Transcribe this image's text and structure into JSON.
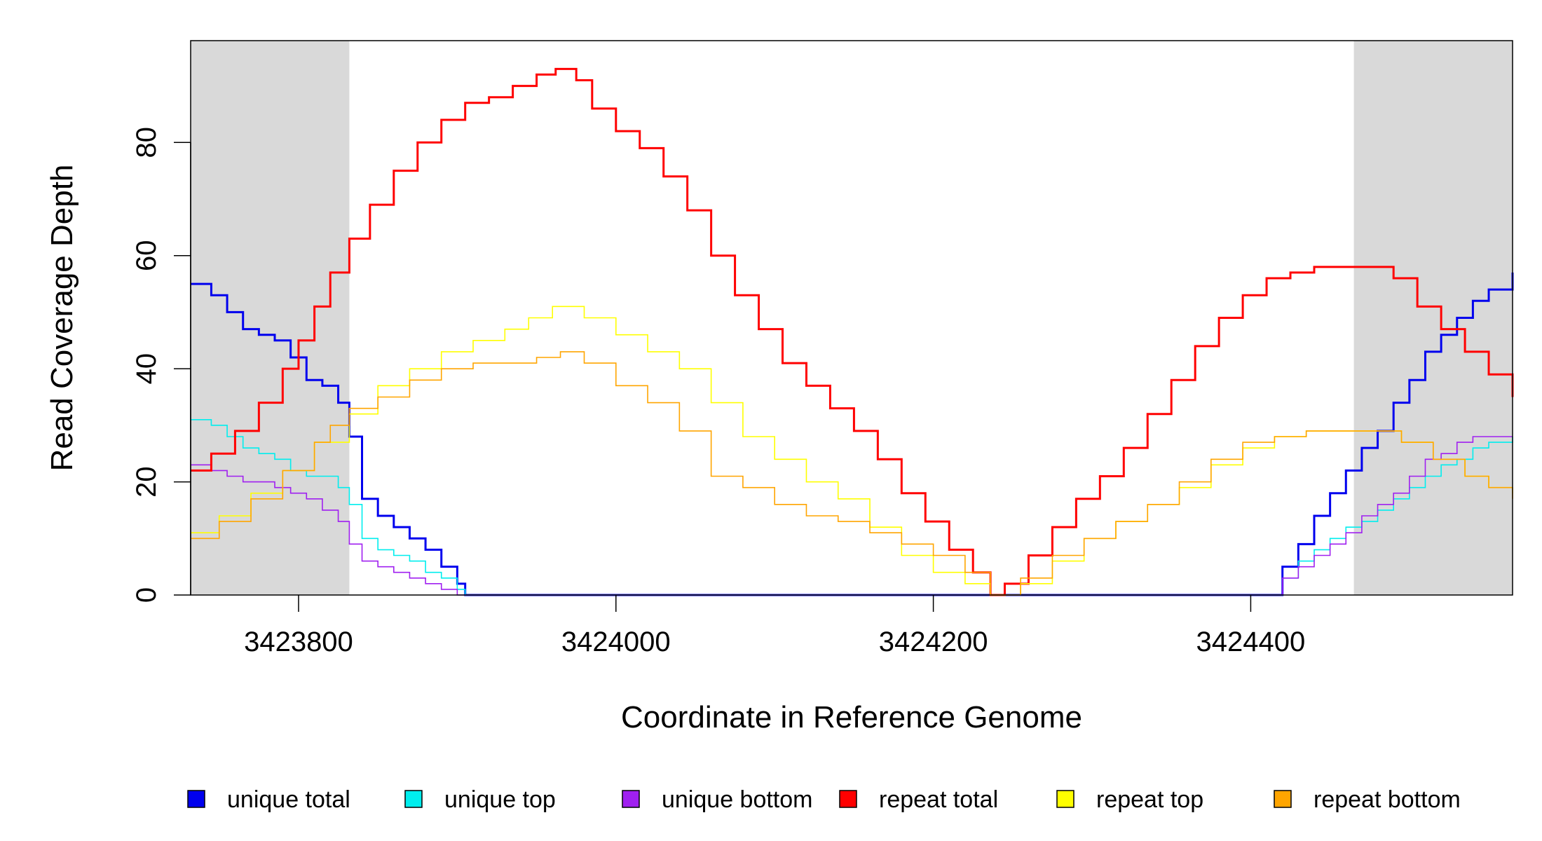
{
  "chart_data": {
    "type": "line",
    "title": "",
    "xlabel": "Coordinate in Reference Genome",
    "ylabel": "Read Coverage Depth",
    "xlim": [
      3423732,
      3424565
    ],
    "ylim": [
      0,
      98
    ],
    "x_ticks": [
      3423800,
      3424000,
      3424200,
      3424400
    ],
    "x_tick_labels": [
      "3423800",
      "3424000",
      "3424200",
      "3424400"
    ],
    "y_ticks": [
      0,
      20,
      40,
      60,
      80
    ],
    "y_tick_labels": [
      "0",
      "20",
      "40",
      "60",
      "80"
    ],
    "shaded_regions": [
      [
        3423732,
        3423832
      ],
      [
        3424465,
        3424565
      ]
    ],
    "legend_position": "bottom",
    "grid": false,
    "series": [
      {
        "name": "unique total",
        "color": "#0000ee",
        "x": [
          3423732,
          3423745,
          3423755,
          3423765,
          3423775,
          3423785,
          3423795,
          3423805,
          3423815,
          3423825,
          3423832,
          3423840,
          3423850,
          3423860,
          3423870,
          3423880,
          3423890,
          3423900,
          3423905,
          3424410,
          3424420,
          3424430,
          3424440,
          3424450,
          3424460,
          3424470,
          3424480,
          3424490,
          3424500,
          3424510,
          3424520,
          3424530,
          3424540,
          3424550,
          3424565
        ],
        "y": [
          55,
          53,
          50,
          47,
          46,
          45,
          42,
          38,
          37,
          34,
          28,
          17,
          14,
          12,
          10,
          8,
          5,
          2,
          0,
          0,
          5,
          9,
          14,
          18,
          22,
          26,
          29,
          34,
          38,
          43,
          46,
          49,
          52,
          54,
          57
        ]
      },
      {
        "name": "unique top",
        "color": "#00eeee",
        "x": [
          3423732,
          3423745,
          3423755,
          3423765,
          3423775,
          3423785,
          3423795,
          3423805,
          3423815,
          3423825,
          3423832,
          3423840,
          3423850,
          3423860,
          3423870,
          3423880,
          3423890,
          3423900,
          3423905,
          3424410,
          3424420,
          3424430,
          3424440,
          3424450,
          3424460,
          3424470,
          3424480,
          3424490,
          3424500,
          3424510,
          3424520,
          3424530,
          3424540,
          3424550,
          3424565
        ],
        "y": [
          31,
          30,
          28,
          26,
          25,
          24,
          22,
          21,
          21,
          19,
          16,
          10,
          8,
          7,
          6,
          4,
          3,
          1,
          0,
          0,
          3,
          6,
          8,
          10,
          12,
          13,
          15,
          17,
          19,
          21,
          23,
          24,
          26,
          27,
          28
        ]
      },
      {
        "name": "unique bottom",
        "color": "#a020f0",
        "x": [
          3423732,
          3423745,
          3423755,
          3423765,
          3423775,
          3423785,
          3423795,
          3423805,
          3423815,
          3423825,
          3423832,
          3423840,
          3423850,
          3423860,
          3423870,
          3423880,
          3423890,
          3423900,
          3423905,
          3424410,
          3424420,
          3424430,
          3424440,
          3424450,
          3424460,
          3424470,
          3424480,
          3424490,
          3424500,
          3424510,
          3424520,
          3424530,
          3424540,
          3424550,
          3424565
        ],
        "y": [
          23,
          22,
          21,
          20,
          20,
          19,
          18,
          17,
          15,
          13,
          9,
          6,
          5,
          4,
          3,
          2,
          1,
          0,
          0,
          0,
          3,
          5,
          7,
          9,
          11,
          14,
          16,
          18,
          21,
          24,
          25,
          27,
          28,
          28,
          28
        ]
      },
      {
        "name": "repeat total",
        "color": "#ff0000",
        "x": [
          3423732,
          3423745,
          3423760,
          3423775,
          3423790,
          3423800,
          3423810,
          3423820,
          3423832,
          3423845,
          3423860,
          3423875,
          3423890,
          3423905,
          3423920,
          3423935,
          3423950,
          3423962,
          3423975,
          3423985,
          3424000,
          3424015,
          3424030,
          3424045,
          3424060,
          3424075,
          3424090,
          3424105,
          3424120,
          3424135,
          3424150,
          3424165,
          3424180,
          3424195,
          3424210,
          3424225,
          3424236,
          3424245,
          3424260,
          3424275,
          3424290,
          3424305,
          3424320,
          3424335,
          3424350,
          3424365,
          3424380,
          3424395,
          3424410,
          3424425,
          3424440,
          3424455,
          3424465,
          3424475,
          3424490,
          3424505,
          3424520,
          3424535,
          3424550,
          3424565
        ],
        "y": [
          22,
          25,
          29,
          34,
          40,
          45,
          51,
          57,
          63,
          69,
          75,
          80,
          84,
          87,
          88,
          90,
          92,
          93,
          91,
          86,
          82,
          79,
          74,
          68,
          60,
          53,
          47,
          41,
          37,
          33,
          29,
          24,
          18,
          13,
          8,
          4,
          0,
          2,
          7,
          12,
          17,
          21,
          26,
          32,
          38,
          44,
          49,
          53,
          56,
          57,
          58,
          58,
          58,
          58,
          56,
          51,
          47,
          43,
          39,
          35
        ]
      },
      {
        "name": "repeat top",
        "color": "#ffff00",
        "x": [
          3423732,
          3423750,
          3423770,
          3423790,
          3423810,
          3423832,
          3423850,
          3423870,
          3423890,
          3423910,
          3423930,
          3423945,
          3423960,
          3423980,
          3424000,
          3424020,
          3424040,
          3424060,
          3424080,
          3424100,
          3424120,
          3424140,
          3424160,
          3424180,
          3424200,
          3424220,
          3424236,
          3424255,
          3424275,
          3424295,
          3424315,
          3424335,
          3424355,
          3424375,
          3424395,
          3424415,
          3424435,
          3424455,
          3424475,
          3424495,
          3424515,
          3424535,
          3424550,
          3424565
        ],
        "y": [
          11,
          14,
          18,
          22,
          27,
          32,
          37,
          40,
          43,
          45,
          47,
          49,
          51,
          49,
          46,
          43,
          40,
          34,
          28,
          24,
          20,
          17,
          12,
          7,
          4,
          2,
          0,
          2,
          6,
          10,
          13,
          16,
          19,
          23,
          26,
          28,
          29,
          29,
          29,
          27,
          24,
          21,
          19,
          18
        ]
      },
      {
        "name": "repeat bottom",
        "color": "#ffa500",
        "x": [
          3423732,
          3423750,
          3423770,
          3423790,
          3423810,
          3423820,
          3423832,
          3423850,
          3423870,
          3423890,
          3423910,
          3423930,
          3423950,
          3423965,
          3423980,
          3424000,
          3424020,
          3424040,
          3424060,
          3424080,
          3424100,
          3424120,
          3424140,
          3424160,
          3424180,
          3424200,
          3424220,
          3424236,
          3424255,
          3424275,
          3424295,
          3424315,
          3424335,
          3424355,
          3424375,
          3424395,
          3424415,
          3424435,
          3424455,
          3424475,
          3424495,
          3424515,
          3424535,
          3424550,
          3424565
        ],
        "y": [
          10,
          13,
          17,
          22,
          27,
          30,
          33,
          35,
          38,
          40,
          41,
          41,
          42,
          43,
          41,
          37,
          34,
          29,
          21,
          19,
          16,
          14,
          13,
          11,
          9,
          7,
          4,
          0,
          3,
          7,
          10,
          13,
          16,
          20,
          24,
          27,
          28,
          29,
          29,
          29,
          27,
          24,
          21,
          19,
          17
        ]
      }
    ]
  }
}
